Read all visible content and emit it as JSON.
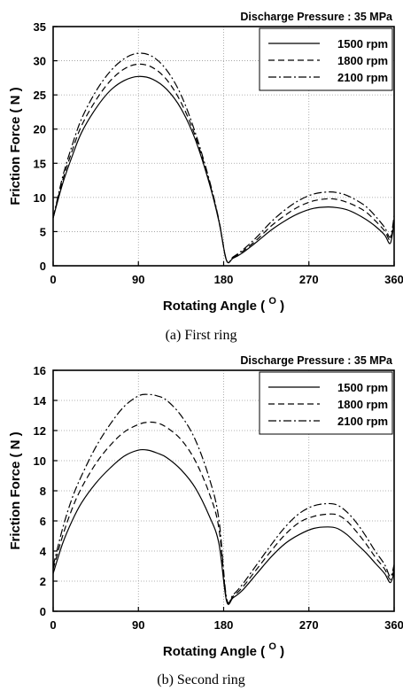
{
  "chart_data": [
    {
      "type": "line",
      "title": "Discharge Pressure : 35 MPa",
      "caption": "(a) First ring",
      "xlabel": "Rotating Angle ( ",
      "xlabel_sup": "O",
      "xlabel_close": " )",
      "ylabel": "Friction Force ( N )",
      "xlim": [
        0,
        360
      ],
      "ylim": [
        0,
        35
      ],
      "xticks": [
        "0",
        "90",
        "180",
        "270",
        "360"
      ],
      "yticks": [
        "0",
        "5",
        "10",
        "15",
        "20",
        "25",
        "30",
        "35"
      ],
      "grid": true,
      "legend_position": "top-right",
      "series": [
        {
          "name": "1500 rpm",
          "dash": "solid",
          "x": [
            0,
            10,
            20,
            30,
            45,
            60,
            75,
            90,
            105,
            120,
            135,
            150,
            165,
            175,
            183,
            190,
            200,
            215,
            230,
            245,
            260,
            275,
            290,
            300,
            310,
            320,
            330,
            340,
            350,
            356,
            360
          ],
          "y": [
            7.0,
            12.0,
            16.0,
            19.5,
            23.0,
            25.6,
            27.1,
            27.7,
            27.3,
            25.8,
            23.0,
            18.5,
            12.0,
            6.5,
            0.8,
            1.1,
            1.9,
            3.5,
            5.2,
            6.6,
            7.7,
            8.4,
            8.6,
            8.5,
            8.2,
            7.6,
            6.8,
            5.8,
            4.5,
            3.3,
            6.5
          ]
        },
        {
          "name": "1800 rpm",
          "dash": "dash",
          "x": [
            0,
            10,
            20,
            30,
            45,
            60,
            75,
            90,
            105,
            120,
            135,
            150,
            165,
            175,
            183,
            190,
            200,
            215,
            230,
            245,
            260,
            275,
            290,
            300,
            310,
            320,
            330,
            340,
            350,
            356,
            360
          ],
          "y": [
            7.0,
            12.5,
            16.8,
            20.5,
            24.2,
            27.0,
            28.8,
            29.5,
            29.0,
            27.2,
            23.9,
            19.0,
            12.2,
            6.6,
            0.8,
            1.2,
            2.1,
            3.8,
            5.8,
            7.4,
            8.7,
            9.5,
            9.8,
            9.7,
            9.3,
            8.7,
            7.9,
            6.6,
            5.1,
            3.8,
            6.9
          ]
        },
        {
          "name": "2100 rpm",
          "dash": "dashdot",
          "x": [
            0,
            10,
            20,
            30,
            45,
            60,
            75,
            90,
            105,
            120,
            135,
            150,
            165,
            175,
            183,
            190,
            200,
            215,
            230,
            245,
            260,
            275,
            290,
            300,
            310,
            320,
            330,
            340,
            350,
            356,
            360
          ],
          "y": [
            7.0,
            13.0,
            17.6,
            21.5,
            25.5,
            28.4,
            30.3,
            31.1,
            30.6,
            28.6,
            25.0,
            19.5,
            12.5,
            6.7,
            0.8,
            1.3,
            2.3,
            4.2,
            6.4,
            8.2,
            9.6,
            10.5,
            10.8,
            10.7,
            10.3,
            9.6,
            8.7,
            7.3,
            5.6,
            4.2,
            7.3
          ]
        }
      ]
    },
    {
      "type": "line",
      "title": "Discharge Pressure : 35 MPa",
      "caption": "(b) Second ring",
      "xlabel": "Rotating Angle ( ",
      "xlabel_sup": "O",
      "xlabel_close": " )",
      "ylabel": "Friction Force ( N )",
      "xlim": [
        0,
        360
      ],
      "ylim": [
        0,
        16
      ],
      "xticks": [
        "0",
        "90",
        "180",
        "270",
        "360"
      ],
      "yticks": [
        "0",
        "2",
        "4",
        "6",
        "8",
        "10",
        "12",
        "14",
        "16"
      ],
      "grid": true,
      "legend_position": "top-right",
      "series": [
        {
          "name": "1500 rpm",
          "dash": "solid",
          "x": [
            0,
            10,
            20,
            30,
            45,
            60,
            75,
            90,
            100,
            110,
            120,
            135,
            150,
            165,
            175,
            183,
            190,
            200,
            215,
            230,
            245,
            260,
            275,
            290,
            300,
            310,
            320,
            330,
            340,
            350,
            356,
            360
          ],
          "y": [
            2.5,
            4.5,
            6.0,
            7.2,
            8.5,
            9.5,
            10.3,
            10.7,
            10.7,
            10.5,
            10.2,
            9.4,
            8.2,
            6.3,
            4.5,
            0.7,
            0.9,
            1.4,
            2.5,
            3.6,
            4.5,
            5.1,
            5.5,
            5.6,
            5.5,
            5.1,
            4.5,
            3.9,
            3.2,
            2.5,
            1.9,
            2.6
          ]
        },
        {
          "name": "1800 rpm",
          "dash": "dash",
          "x": [
            0,
            10,
            20,
            30,
            45,
            60,
            75,
            90,
            100,
            110,
            120,
            135,
            150,
            165,
            175,
            183,
            190,
            200,
            215,
            230,
            245,
            260,
            275,
            290,
            300,
            310,
            320,
            330,
            340,
            350,
            356,
            360
          ],
          "y": [
            2.8,
            5.0,
            6.8,
            8.2,
            9.8,
            11.0,
            11.9,
            12.4,
            12.55,
            12.5,
            12.2,
            11.4,
            10.0,
            7.8,
            5.5,
            0.8,
            1.0,
            1.6,
            2.8,
            4.0,
            5.1,
            5.9,
            6.3,
            6.45,
            6.4,
            6.0,
            5.3,
            4.5,
            3.6,
            2.8,
            2.1,
            2.8
          ]
        },
        {
          "name": "2100 rpm",
          "dash": "dashdot",
          "x": [
            0,
            10,
            20,
            30,
            45,
            60,
            75,
            90,
            100,
            110,
            120,
            135,
            150,
            165,
            175,
            183,
            190,
            200,
            215,
            230,
            245,
            260,
            275,
            290,
            300,
            310,
            320,
            330,
            340,
            350,
            356,
            360
          ],
          "y": [
            3.0,
            5.5,
            7.5,
            9.0,
            10.9,
            12.4,
            13.6,
            14.3,
            14.4,
            14.3,
            14.0,
            13.0,
            11.4,
            8.8,
            6.1,
            0.9,
            1.1,
            1.8,
            3.1,
            4.4,
            5.6,
            6.5,
            7.0,
            7.15,
            7.05,
            6.6,
            5.9,
            5.0,
            4.0,
            3.1,
            2.3,
            3.1
          ]
        }
      ]
    }
  ]
}
